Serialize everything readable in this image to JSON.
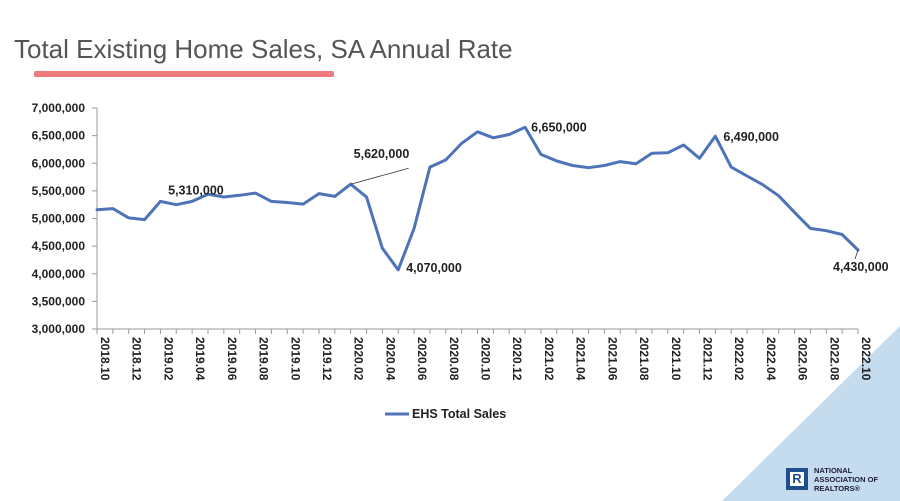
{
  "page": {
    "title": "Total Existing Home Sales, SA Annual Rate"
  },
  "colors": {
    "line": "#4f73b8",
    "accent_underline": "#ef7b7b",
    "corner": "#c5dcee",
    "logo": "#1f4e8c"
  },
  "logo": {
    "lines": [
      "NATIONAL",
      "ASSOCIATION OF",
      "REALTORS®"
    ],
    "icon": "realtor-r-logo-icon"
  },
  "chart_data": {
    "type": "line",
    "title": "Total Existing Home Sales, SA Annual Rate",
    "xlabel": "",
    "ylabel": "",
    "ylim": [
      3000000,
      7000000
    ],
    "yticks": [
      3000000,
      3500000,
      4000000,
      4500000,
      5000000,
      5500000,
      6000000,
      6500000,
      7000000
    ],
    "ytick_labels": [
      "3,000,000",
      "3,500,000",
      "4,000,000",
      "4,500,000",
      "5,000,000",
      "5,500,000",
      "6,000,000",
      "6,500,000",
      "7,000,000"
    ],
    "grid": false,
    "legend_position": "bottom",
    "x": [
      "2018.10",
      "2018.11",
      "2018.12",
      "2019.01",
      "2019.02",
      "2019.03",
      "2019.04",
      "2019.05",
      "2019.06",
      "2019.07",
      "2019.08",
      "2019.09",
      "2019.10",
      "2019.11",
      "2019.12",
      "2020.01",
      "2020.02",
      "2020.03",
      "2020.04",
      "2020.05",
      "2020.06",
      "2020.07",
      "2020.08",
      "2020.09",
      "2020.10",
      "2020.11",
      "2020.12",
      "2021.01",
      "2021.02",
      "2021.03",
      "2021.04",
      "2021.05",
      "2021.06",
      "2021.07",
      "2021.08",
      "2021.09",
      "2021.10",
      "2021.11",
      "2021.12",
      "2022.01",
      "2022.02",
      "2022.03",
      "2022.04",
      "2022.05",
      "2022.06",
      "2022.07",
      "2022.08",
      "2022.09",
      "2022.10"
    ],
    "x_tick_labels": [
      "2018.10",
      "2018.12",
      "2019.02",
      "2019.04",
      "2019.06",
      "2019.08",
      "2019.10",
      "2019.12",
      "2020.02",
      "2020.04",
      "2020.06",
      "2020.08",
      "2020.10",
      "2020.12",
      "2021.02",
      "2021.04",
      "2021.06",
      "2021.08",
      "2021.10",
      "2021.12",
      "2022.02",
      "2022.04",
      "2022.06",
      "2022.08",
      "2022.10"
    ],
    "series": [
      {
        "name": "EHS Total Sales",
        "values": [
          5160000,
          5180000,
          5010000,
          4980000,
          5310000,
          5250000,
          5310000,
          5440000,
          5390000,
          5420000,
          5460000,
          5310000,
          5290000,
          5260000,
          5450000,
          5400000,
          5620000,
          5390000,
          4460000,
          4070000,
          4820000,
          5930000,
          6060000,
          6360000,
          6570000,
          6460000,
          6520000,
          6650000,
          6160000,
          6040000,
          5960000,
          5920000,
          5960000,
          6030000,
          5990000,
          6180000,
          6190000,
          6330000,
          6090000,
          6490000,
          5930000,
          5770000,
          5610000,
          5410000,
          5110000,
          4820000,
          4780000,
          4710000,
          4430000
        ]
      }
    ],
    "annotations": [
      {
        "label": "5,310,000"
      },
      {
        "label": "5,620,000"
      },
      {
        "label": "4,070,000"
      },
      {
        "label": "6,650,000"
      },
      {
        "label": "6,490,000"
      },
      {
        "label": "4,430,000"
      }
    ]
  }
}
